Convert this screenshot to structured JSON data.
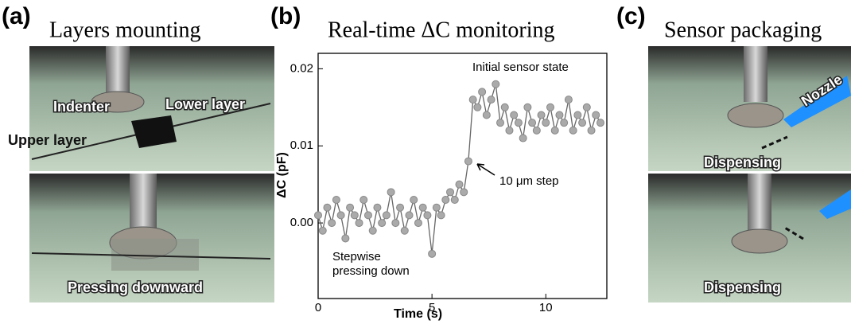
{
  "panels": [
    {
      "label": "(a)",
      "title": "Layers mounting",
      "annotations": [
        "Indenter",
        "Lower layer",
        "Upper layer",
        "Pressing downward"
      ]
    },
    {
      "label": "(b)"
    },
    {
      "label": "(c)",
      "title": "Sensor packaging",
      "annotations": [
        "Nozzle",
        "Dispensing",
        "Dispensing"
      ]
    }
  ],
  "chart_data": {
    "type": "line",
    "title": "Real-time ΔC monitoring",
    "x_label": "Time (s)",
    "y_label": "ΔC (pF)",
    "annotations": [
      "Initial sensor state",
      "10 μm step",
      "Stepwise",
      "pressing down"
    ],
    "xlim": [
      0,
      12.68
    ],
    "xticks": [
      0,
      5,
      10
    ],
    "ylim": [
      -0.0098,
      0.022
    ],
    "yticks": [
      {
        "value": 0,
        "label": "0.00"
      },
      0.01,
      0.02
    ],
    "x": [
      0,
      0.2,
      0.4,
      0.6,
      0.8,
      1,
      1.2,
      1.4,
      1.6,
      1.8,
      2,
      2.2,
      2.4,
      2.6,
      2.8,
      3,
      3.2,
      3.4,
      3.6,
      3.8,
      4,
      4.2,
      4.4,
      4.6,
      4.8,
      5,
      5.2,
      5.4,
      5.6,
      5.8,
      6,
      6.2,
      6.4,
      6.6,
      6.8,
      7,
      7.2,
      7.4,
      7.6,
      7.8,
      8,
      8.2,
      8.4,
      8.6,
      8.8,
      9,
      9.2,
      9.4,
      9.6,
      9.8,
      10,
      10.2,
      10.4,
      10.6,
      10.8,
      11,
      11.2,
      11.4,
      11.6,
      11.8,
      12,
      12.2,
      12.4
    ],
    "series": [
      {
        "color": "#aaaaaa",
        "values": [
          0.001,
          -0.001,
          0.002,
          0.0,
          0.003,
          0.001,
          -0.002,
          0.002,
          0.001,
          0.0,
          0.003,
          0.001,
          -0.001,
          0.002,
          0.0,
          0.001,
          0.004,
          0.0,
          0.002,
          -0.001,
          0.001,
          0.003,
          0.0,
          0.002,
          0.001,
          -0.004,
          0.002,
          0.001,
          0.003,
          0.004,
          0.003,
          0.005,
          0.004,
          0.008,
          0.016,
          0.015,
          0.017,
          0.014,
          0.016,
          0.018,
          0.013,
          0.015,
          0.012,
          0.014,
          0.013,
          0.011,
          0.015,
          0.013,
          0.012,
          0.014,
          0.013,
          0.015,
          0.012,
          0.014,
          0.013,
          0.016,
          0.012,
          0.014,
          0.013,
          0.015,
          0.012,
          0.014,
          0.013
        ]
      }
    ]
  }
}
